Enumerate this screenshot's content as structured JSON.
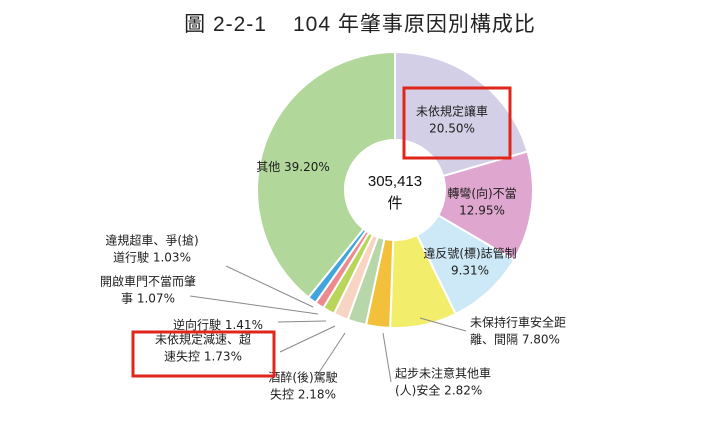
{
  "figure_number": "圖 2-2-1",
  "chart_data": {
    "type": "pie",
    "variant": "donut",
    "title": "104 年肇事原因別構成比",
    "center_value": "305,413",
    "center_unit": "件",
    "highlighted": [
      "未依規定讓車",
      "未依規定減速、超速失控"
    ],
    "highlight_color": "#e0261b",
    "slices": [
      {
        "lines": [
          "未依規定讓車",
          "20.50%"
        ],
        "value": 20.5,
        "color": "#d3cfe6"
      },
      {
        "lines": [
          "轉彎(向)不當",
          "12.95%"
        ],
        "value": 12.95,
        "color": "#dfa6cf"
      },
      {
        "lines": [
          "違反號(標)誌管制",
          "9.31%"
        ],
        "value": 9.31,
        "color": "#cde8f6"
      },
      {
        "lines": [
          "未保持行車安全距",
          "離、間隔 7.80%"
        ],
        "value": 7.8,
        "color": "#f2ee6c"
      },
      {
        "lines": [
          "起步未注意其他車",
          "(人)安全 2.82%"
        ],
        "value": 2.82,
        "color": "#f3c03c"
      },
      {
        "lines": [
          "酒醉(後)駕駛",
          "失控 2.18%"
        ],
        "value": 2.18,
        "color": "#b7d7aa"
      },
      {
        "lines": [
          "未依規定減速、超",
          "速失控 1.73%"
        ],
        "value": 1.73,
        "color": "#f8d4c2"
      },
      {
        "lines": [
          "逆向行駛 1.41%"
        ],
        "value": 1.41,
        "color": "#b9d55a"
      },
      {
        "lines": [
          "開啟車門不當而肇",
          "事 1.07%"
        ],
        "value": 1.07,
        "color": "#ec8a8d"
      },
      {
        "lines": [
          "違規超車、爭(搶)",
          "道行駛 1.03%"
        ],
        "value": 1.03,
        "color": "#3fa5dc"
      },
      {
        "lines": [
          "其他 39.20%"
        ],
        "value": 39.2,
        "color": "#b2d79a"
      }
    ]
  }
}
